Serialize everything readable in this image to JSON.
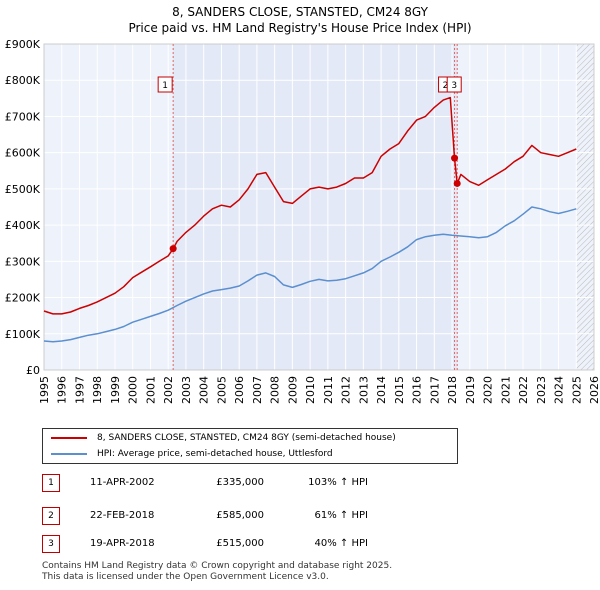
{
  "title_line1": "8, SANDERS CLOSE, STANSTED, CM24 8GY",
  "title_line2": "Price paid vs. HM Land Registry's House Price Index (HPI)",
  "chart_data": {
    "type": "line",
    "title": "8, SANDERS CLOSE, STANSTED, CM24 8GY — Price paid vs. HM Land Registry's House Price Index (HPI)",
    "xlabel": "",
    "ylabel": "",
    "xlim": [
      1995,
      2026
    ],
    "ylim": [
      0,
      900000
    ],
    "y_ticks": [
      0,
      100000,
      200000,
      300000,
      400000,
      500000,
      600000,
      700000,
      800000,
      900000
    ],
    "y_tick_labels": [
      "£0",
      "£100K",
      "£200K",
      "£300K",
      "£400K",
      "£500K",
      "£600K",
      "£700K",
      "£800K",
      "£900K"
    ],
    "x_ticks": [
      1995,
      1996,
      1997,
      1998,
      1999,
      2000,
      2001,
      2002,
      2003,
      2004,
      2005,
      2006,
      2007,
      2008,
      2009,
      2010,
      2011,
      2012,
      2013,
      2014,
      2015,
      2016,
      2017,
      2018,
      2019,
      2020,
      2021,
      2022,
      2023,
      2024,
      2025,
      2026
    ],
    "grid": true,
    "series": [
      {
        "name": "8, SANDERS CLOSE, STANSTED, CM24 8GY (semi-detached house)",
        "color": "#cc0000",
        "x": [
          1995.0,
          1995.5,
          1996.0,
          1996.5,
          1997.0,
          1997.5,
          1998.0,
          1998.5,
          1999.0,
          1999.5,
          2000.0,
          2000.5,
          2001.0,
          2001.5,
          2002.0,
          2002.28,
          2002.5,
          2003.0,
          2003.5,
          2004.0,
          2004.5,
          2005.0,
          2005.5,
          2006.0,
          2006.5,
          2007.0,
          2007.5,
          2008.0,
          2008.5,
          2009.0,
          2009.5,
          2010.0,
          2010.5,
          2011.0,
          2011.5,
          2012.0,
          2012.5,
          2013.0,
          2013.5,
          2014.0,
          2014.5,
          2015.0,
          2015.5,
          2016.0,
          2016.5,
          2017.0,
          2017.5,
          2017.9,
          2018.14,
          2018.29,
          2018.5,
          2019.0,
          2019.5,
          2020.0,
          2020.5,
          2021.0,
          2021.5,
          2022.0,
          2022.5,
          2023.0,
          2023.5,
          2024.0,
          2024.5,
          2025.0
        ],
        "values": [
          163000,
          155000,
          155000,
          160000,
          170000,
          178000,
          188000,
          200000,
          212000,
          230000,
          255000,
          270000,
          285000,
          300000,
          315000,
          335000,
          355000,
          380000,
          400000,
          425000,
          445000,
          455000,
          450000,
          470000,
          500000,
          540000,
          545000,
          505000,
          465000,
          460000,
          480000,
          500000,
          505000,
          500000,
          505000,
          515000,
          530000,
          530000,
          545000,
          590000,
          610000,
          625000,
          660000,
          690000,
          700000,
          725000,
          745000,
          752000,
          585000,
          515000,
          540000,
          520000,
          510000,
          525000,
          540000,
          555000,
          575000,
          590000,
          620000,
          600000,
          595000,
          590000,
          600000,
          610000
        ]
      },
      {
        "name": "HPI: Average price, semi-detached house, Uttlesford",
        "color": "#5b8fcf",
        "x": [
          1995.0,
          1995.5,
          1996.0,
          1996.5,
          1997.0,
          1997.5,
          1998.0,
          1998.5,
          1999.0,
          1999.5,
          2000.0,
          2000.5,
          2001.0,
          2001.5,
          2002.0,
          2002.5,
          2003.0,
          2003.5,
          2004.0,
          2004.5,
          2005.0,
          2005.5,
          2006.0,
          2006.5,
          2007.0,
          2007.5,
          2008.0,
          2008.5,
          2009.0,
          2009.5,
          2010.0,
          2010.5,
          2011.0,
          2011.5,
          2012.0,
          2012.5,
          2013.0,
          2013.5,
          2014.0,
          2014.5,
          2015.0,
          2015.5,
          2016.0,
          2016.5,
          2017.0,
          2017.5,
          2018.0,
          2018.5,
          2019.0,
          2019.5,
          2020.0,
          2020.5,
          2021.0,
          2021.5,
          2022.0,
          2022.5,
          2023.0,
          2023.5,
          2024.0,
          2024.5,
          2025.0
        ],
        "values": [
          80000,
          78000,
          80000,
          84000,
          90000,
          96000,
          100000,
          106000,
          112000,
          120000,
          132000,
          140000,
          148000,
          156000,
          165000,
          178000,
          190000,
          200000,
          210000,
          218000,
          222000,
          226000,
          232000,
          246000,
          262000,
          268000,
          258000,
          235000,
          228000,
          236000,
          245000,
          250000,
          246000,
          248000,
          252000,
          260000,
          268000,
          280000,
          300000,
          312000,
          325000,
          340000,
          360000,
          368000,
          372000,
          375000,
          372000,
          370000,
          368000,
          365000,
          368000,
          380000,
          398000,
          412000,
          430000,
          450000,
          445000,
          437000,
          432000,
          438000,
          445000
        ]
      }
    ],
    "markers": [
      {
        "label": "1",
        "x": 2002.28,
        "value": 335000
      },
      {
        "label": "2",
        "x": 2018.14,
        "value": 585000
      },
      {
        "label": "3",
        "x": 2018.29,
        "value": 515000
      }
    ]
  },
  "legend": {
    "property": "8, SANDERS CLOSE, STANSTED, CM24 8GY (semi-detached house)",
    "hpi": "HPI: Average price, semi-detached house, Uttlesford"
  },
  "transactions": [
    {
      "num": "1",
      "date": "11-APR-2002",
      "price": "£335,000",
      "hpi": "103% ↑ HPI"
    },
    {
      "num": "2",
      "date": "22-FEB-2018",
      "price": "£585,000",
      "hpi": "61% ↑ HPI"
    },
    {
      "num": "3",
      "date": "19-APR-2018",
      "price": "£515,000",
      "hpi": "40% ↑ HPI"
    }
  ],
  "footer": {
    "line1": "Contains HM Land Registry data © Crown copyright and database right 2025.",
    "line2": "This data is licensed under the Open Government Licence v3.0."
  }
}
